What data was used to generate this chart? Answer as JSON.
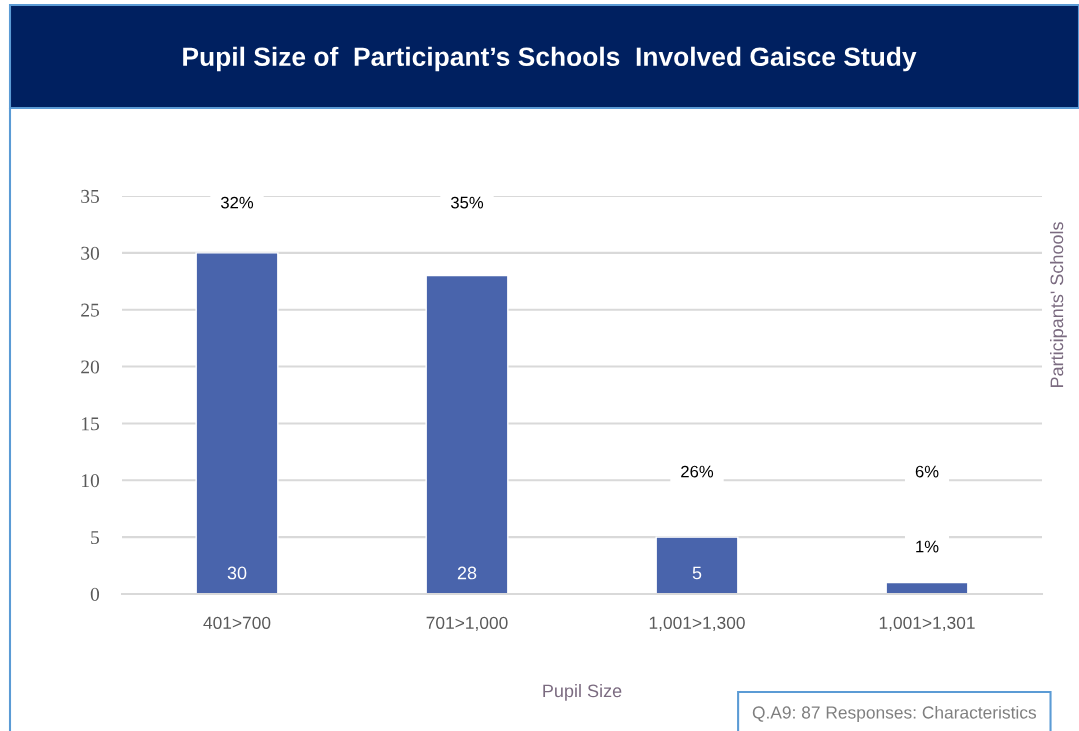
{
  "chart_data": {
    "type": "bar",
    "title": "Pupil Size of  Participant’s Schools  Involved Gaisce Study",
    "xlabel": "Pupil Size",
    "ylabel": "Participants' Schools",
    "categories": [
      "401>700",
      "701>1,000",
      "1,001>1,300",
      "1,001>1,301"
    ],
    "values": [
      30,
      28,
      5,
      1
    ],
    "color": "#4964ac",
    "value_labels": [
      "30",
      "28",
      "5",
      null
    ],
    "ylim": [
      0,
      35
    ],
    "yticks": [
      0,
      5,
      10,
      15,
      20,
      25,
      30,
      35
    ],
    "grid": "y",
    "annotations": [
      "32%",
      "35%",
      "26%",
      "6%",
      "1%",
      "Q.A9: 87 Responses: Characteristics"
    ]
  }
}
